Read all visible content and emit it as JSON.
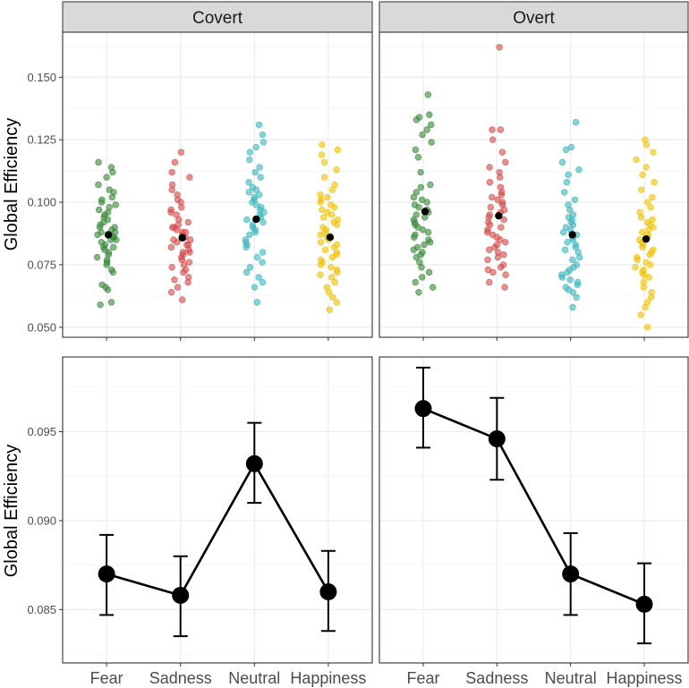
{
  "chart_data": {
    "type": "scatter",
    "facets": [
      "Covert",
      "Overt"
    ],
    "categories": [
      "Fear",
      "Sadness",
      "Neutral",
      "Happiness"
    ],
    "colors": {
      "Fear": "#3a8a3a",
      "Sadness": "#d94a4a",
      "Neutral": "#3cb8bf",
      "Happiness": "#f2c200",
      "mean": "#000000",
      "line": "#000000"
    },
    "top_panel": {
      "ylabel": "Global Efficiency",
      "ylim": [
        0.046,
        0.168
      ],
      "yticks": [
        0.05,
        0.075,
        0.1,
        0.125,
        0.15
      ],
      "ytick_labels": [
        "0.050",
        "0.075",
        "0.100",
        "0.125",
        "0.150"
      ],
      "points": {
        "Covert": {
          "Fear": [
            0.059,
            0.06,
            0.065,
            0.066,
            0.067,
            0.072,
            0.073,
            0.075,
            0.076,
            0.077,
            0.078,
            0.079,
            0.08,
            0.081,
            0.082,
            0.082,
            0.083,
            0.084,
            0.085,
            0.085,
            0.086,
            0.086,
            0.087,
            0.087,
            0.088,
            0.088,
            0.089,
            0.09,
            0.09,
            0.091,
            0.092,
            0.093,
            0.094,
            0.095,
            0.096,
            0.097,
            0.098,
            0.099,
            0.1,
            0.101,
            0.102,
            0.104,
            0.105,
            0.107,
            0.11,
            0.112,
            0.114,
            0.116
          ],
          "Sadness": [
            0.061,
            0.064,
            0.066,
            0.068,
            0.069,
            0.07,
            0.072,
            0.073,
            0.074,
            0.075,
            0.076,
            0.077,
            0.078,
            0.079,
            0.08,
            0.08,
            0.081,
            0.082,
            0.083,
            0.083,
            0.084,
            0.085,
            0.085,
            0.086,
            0.086,
            0.087,
            0.088,
            0.088,
            0.089,
            0.09,
            0.09,
            0.091,
            0.092,
            0.093,
            0.095,
            0.096,
            0.097,
            0.098,
            0.1,
            0.101,
            0.103,
            0.105,
            0.107,
            0.11,
            0.112,
            0.116,
            0.12
          ],
          "Neutral": [
            0.06,
            0.066,
            0.068,
            0.07,
            0.072,
            0.074,
            0.076,
            0.078,
            0.08,
            0.082,
            0.083,
            0.084,
            0.085,
            0.087,
            0.088,
            0.089,
            0.09,
            0.091,
            0.092,
            0.093,
            0.094,
            0.095,
            0.096,
            0.097,
            0.098,
            0.099,
            0.1,
            0.101,
            0.102,
            0.103,
            0.104,
            0.105,
            0.106,
            0.108,
            0.11,
            0.112,
            0.114,
            0.117,
            0.12,
            0.122,
            0.124,
            0.127,
            0.131
          ],
          "Happiness": [
            0.057,
            0.06,
            0.062,
            0.064,
            0.066,
            0.068,
            0.07,
            0.071,
            0.072,
            0.073,
            0.074,
            0.075,
            0.076,
            0.077,
            0.078,
            0.079,
            0.08,
            0.081,
            0.082,
            0.083,
            0.084,
            0.085,
            0.086,
            0.087,
            0.088,
            0.089,
            0.09,
            0.091,
            0.092,
            0.093,
            0.094,
            0.095,
            0.096,
            0.097,
            0.098,
            0.099,
            0.1,
            0.101,
            0.102,
            0.103,
            0.105,
            0.107,
            0.11,
            0.113,
            0.116,
            0.119,
            0.121,
            0.123
          ]
        },
        "Overt": {
          "Fear": [
            0.064,
            0.066,
            0.068,
            0.07,
            0.072,
            0.074,
            0.076,
            0.078,
            0.079,
            0.08,
            0.081,
            0.082,
            0.083,
            0.084,
            0.085,
            0.086,
            0.087,
            0.088,
            0.089,
            0.09,
            0.091,
            0.092,
            0.093,
            0.094,
            0.095,
            0.096,
            0.097,
            0.098,
            0.099,
            0.1,
            0.101,
            0.102,
            0.104,
            0.106,
            0.107,
            0.112,
            0.118,
            0.121,
            0.124,
            0.127,
            0.129,
            0.131,
            0.133,
            0.134,
            0.135,
            0.143
          ],
          "Sadness": [
            0.066,
            0.068,
            0.071,
            0.072,
            0.073,
            0.074,
            0.075,
            0.077,
            0.078,
            0.079,
            0.08,
            0.081,
            0.082,
            0.083,
            0.084,
            0.085,
            0.086,
            0.087,
            0.088,
            0.089,
            0.09,
            0.091,
            0.092,
            0.093,
            0.094,
            0.095,
            0.096,
            0.097,
            0.098,
            0.099,
            0.1,
            0.101,
            0.102,
            0.103,
            0.104,
            0.106,
            0.108,
            0.11,
            0.112,
            0.114,
            0.116,
            0.12,
            0.125,
            0.129,
            0.129,
            0.162
          ],
          "Neutral": [
            0.058,
            0.062,
            0.064,
            0.065,
            0.066,
            0.067,
            0.068,
            0.069,
            0.07,
            0.071,
            0.072,
            0.073,
            0.074,
            0.075,
            0.077,
            0.078,
            0.08,
            0.081,
            0.082,
            0.083,
            0.084,
            0.085,
            0.086,
            0.087,
            0.088,
            0.089,
            0.09,
            0.091,
            0.092,
            0.093,
            0.094,
            0.095,
            0.097,
            0.099,
            0.101,
            0.104,
            0.108,
            0.111,
            0.113,
            0.116,
            0.121,
            0.122,
            0.132
          ],
          "Happiness": [
            0.05,
            0.055,
            0.058,
            0.06,
            0.062,
            0.064,
            0.066,
            0.068,
            0.07,
            0.071,
            0.072,
            0.073,
            0.074,
            0.075,
            0.076,
            0.077,
            0.078,
            0.079,
            0.08,
            0.081,
            0.082,
            0.083,
            0.084,
            0.085,
            0.086,
            0.087,
            0.088,
            0.089,
            0.09,
            0.091,
            0.092,
            0.093,
            0.094,
            0.096,
            0.098,
            0.1,
            0.102,
            0.105,
            0.108,
            0.111,
            0.114,
            0.117,
            0.12,
            0.123,
            0.125
          ]
        }
      },
      "means": {
        "Covert": [
          0.087,
          0.0858,
          0.0932,
          0.086
        ],
        "Overt": [
          0.0963,
          0.0946,
          0.087,
          0.0853
        ]
      }
    },
    "bottom_panel": {
      "ylabel": "Global Efficiency",
      "ylim": [
        0.082,
        0.0992
      ],
      "yticks": [
        0.085,
        0.09,
        0.095
      ],
      "ytick_labels": [
        "0.085",
        "0.090",
        "0.095"
      ],
      "means": {
        "Covert": [
          0.087,
          0.0858,
          0.0932,
          0.086
        ],
        "Overt": [
          0.0963,
          0.0946,
          0.087,
          0.0853
        ]
      },
      "error_low": {
        "Covert": [
          0.0847,
          0.0835,
          0.091,
          0.0838
        ],
        "Overt": [
          0.0941,
          0.0923,
          0.0847,
          0.0831
        ]
      },
      "error_high": {
        "Covert": [
          0.0892,
          0.088,
          0.0955,
          0.0883
        ],
        "Overt": [
          0.0986,
          0.0969,
          0.0893,
          0.0876
        ]
      }
    }
  }
}
